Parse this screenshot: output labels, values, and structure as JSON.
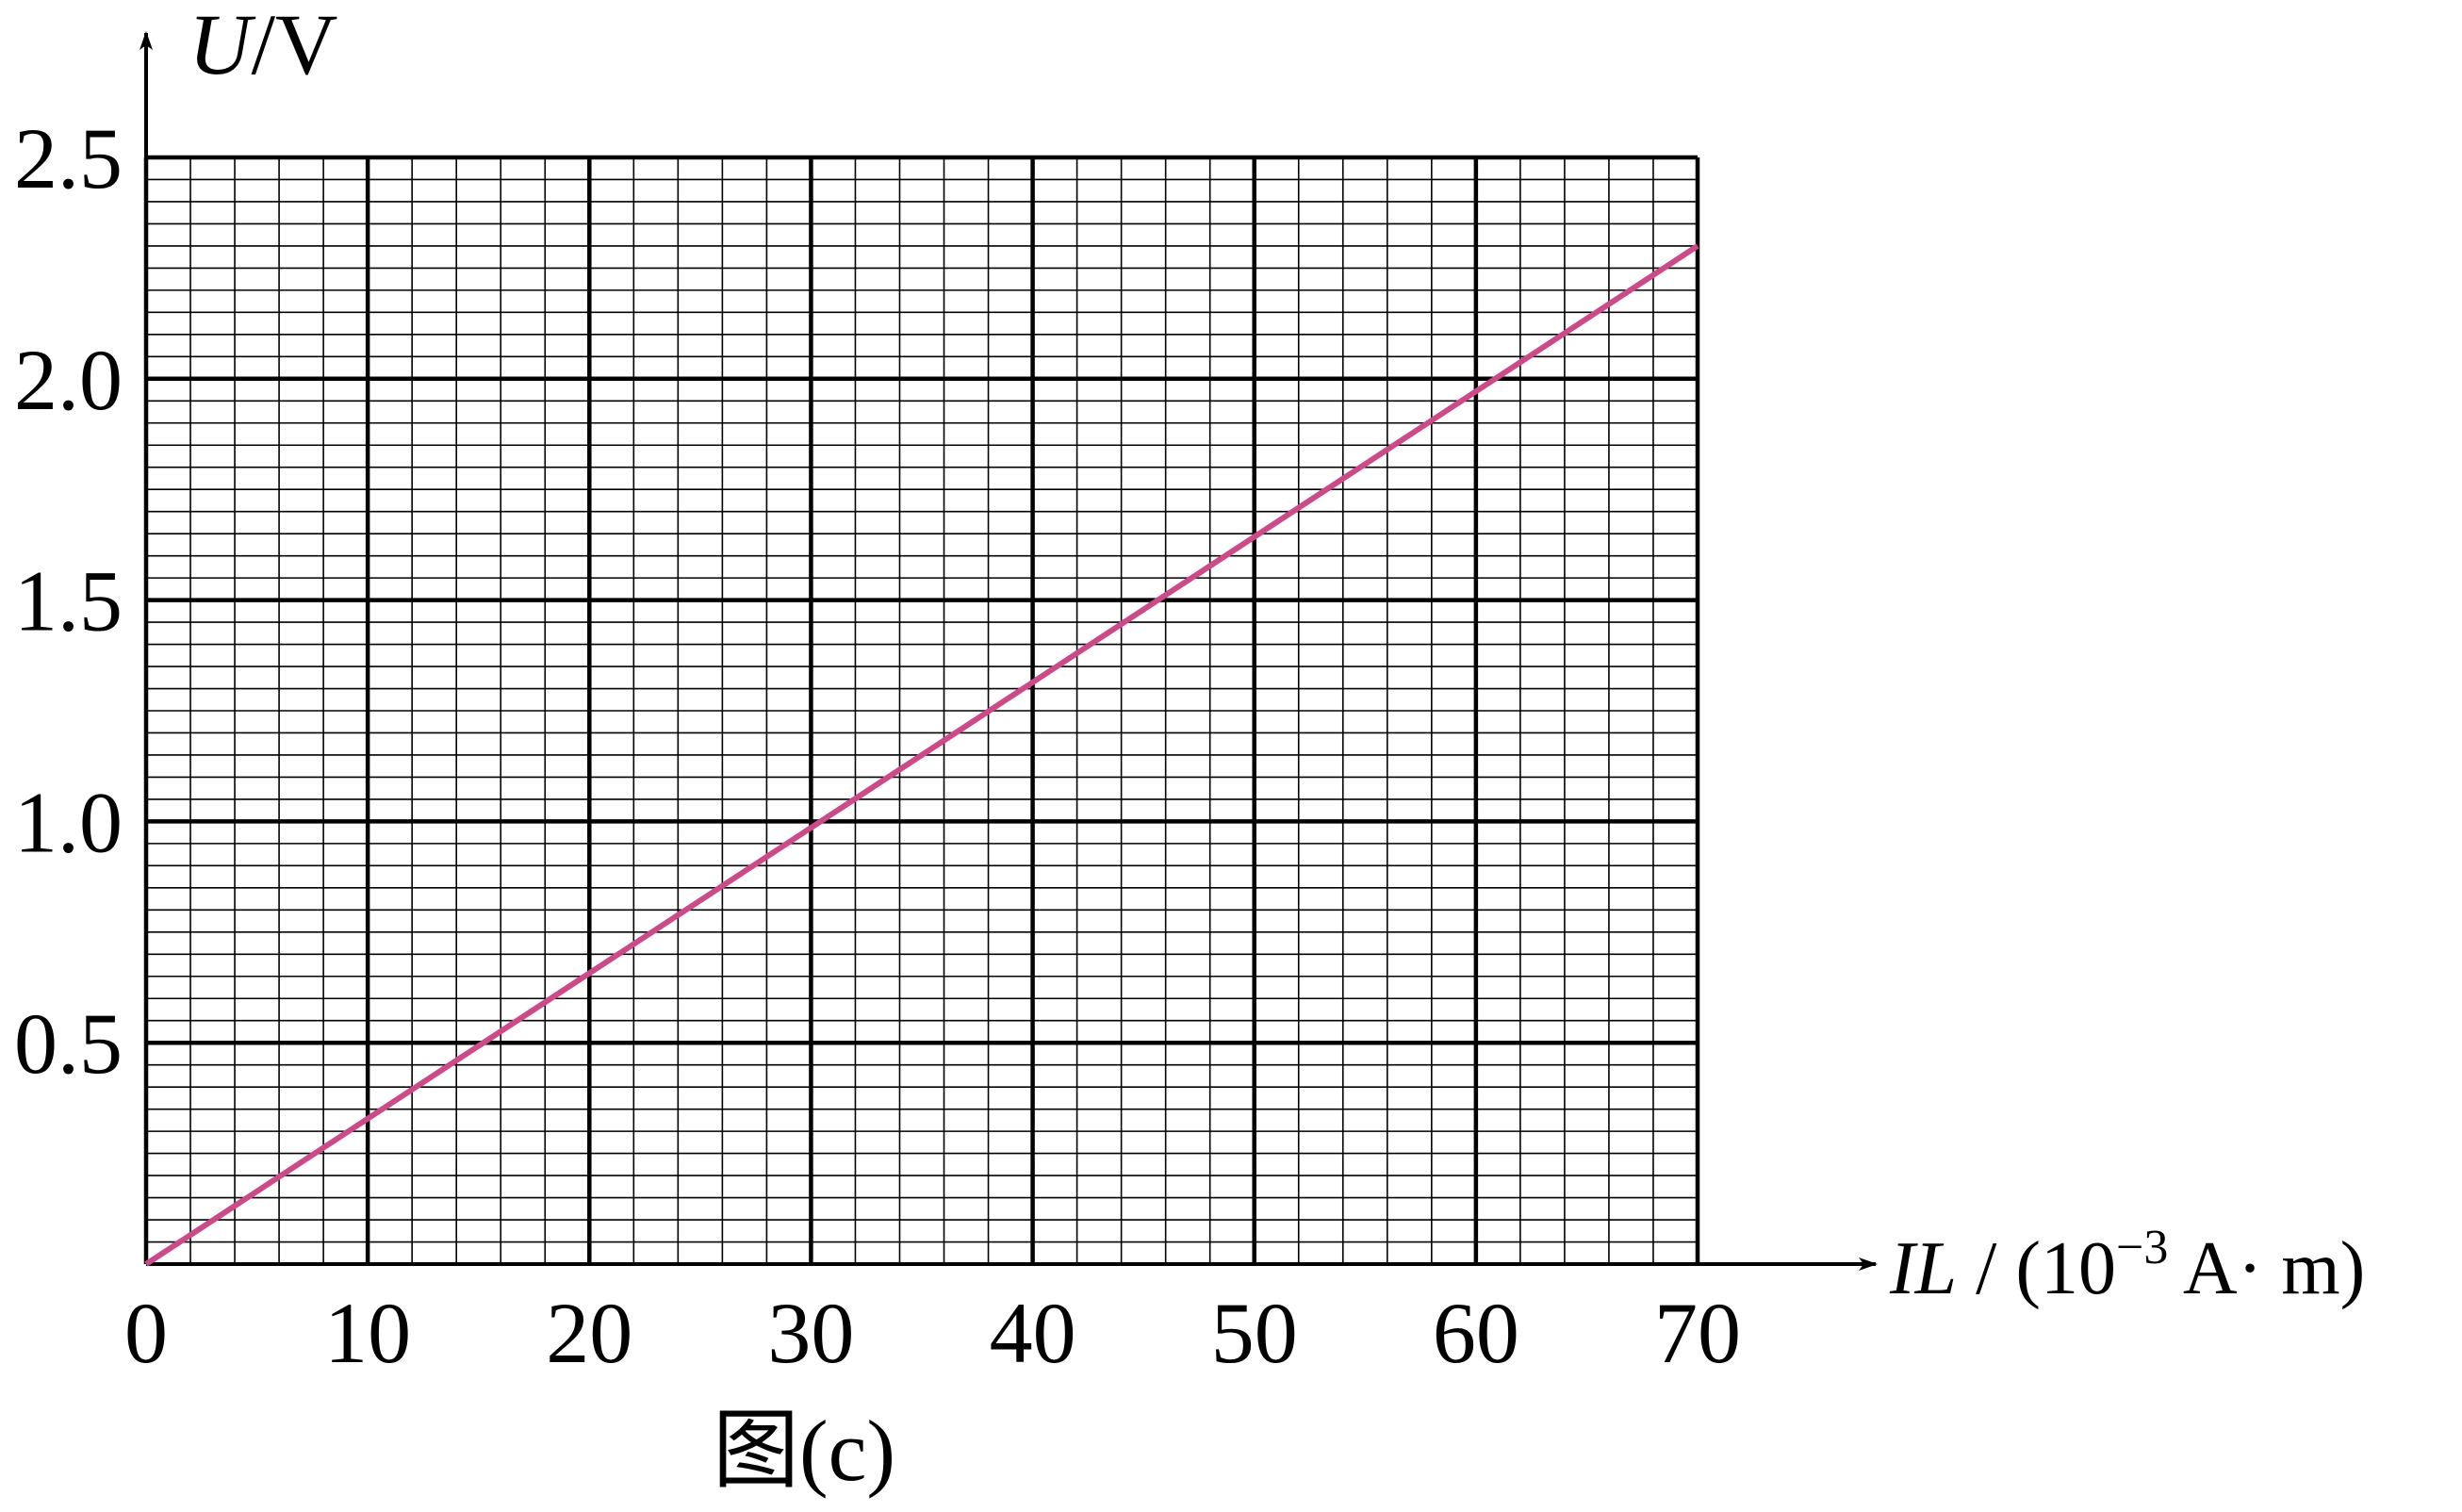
{
  "chart_data": {
    "type": "line",
    "ylabel_parts": [
      "U",
      "/V"
    ],
    "xlabel_parts": [
      "IL",
      " / (10",
      "−3",
      " A· m)"
    ],
    "caption": "图(c)",
    "x": [
      0,
      70
    ],
    "values": [
      0,
      2.3
    ],
    "color": "#cc4a88",
    "xlim": [
      0,
      70
    ],
    "xticks": [
      0,
      10,
      20,
      30,
      40,
      50,
      60,
      70
    ],
    "ylim": [
      0,
      2.5
    ],
    "yticks": [
      0.5,
      {
        "value": 1,
        "label": "1.0"
      },
      1.5,
      {
        "value": 2,
        "label": "2.0"
      },
      2.5
    ],
    "grid": true
  }
}
